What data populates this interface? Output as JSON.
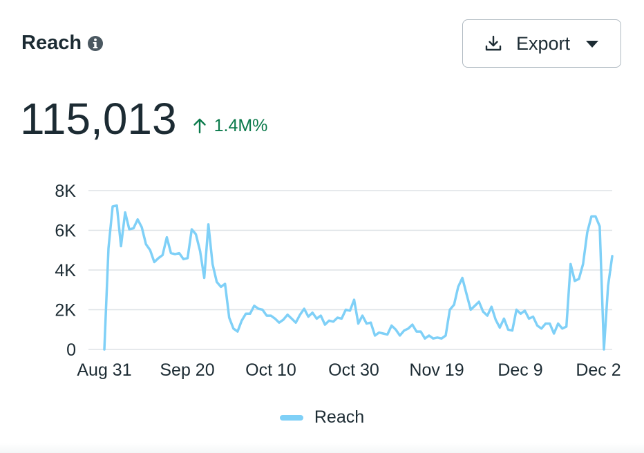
{
  "header": {
    "title": "Reach",
    "export_label": "Export"
  },
  "metric": {
    "value": "115,013",
    "change": "1.4M%"
  },
  "legend": {
    "label": "Reach"
  },
  "colors": {
    "series": "#7fd0f7",
    "grid": "#dde2e6",
    "text": "#1c2b33",
    "positive": "#0b7a4b"
  },
  "chart_data": {
    "type": "line",
    "x_tick_labels": [
      "Aug 31",
      "Sep 20",
      "Oct 10",
      "Oct 30",
      "Nov 19",
      "Dec 9",
      "Dec 2"
    ],
    "y_tick_labels": [
      "0",
      "2K",
      "4K",
      "6K",
      "8K"
    ],
    "ylim": [
      0,
      8000
    ],
    "grid": true,
    "legend_position": "bottom",
    "series": [
      {
        "name": "Reach",
        "values": [
          0,
          5100,
          7200,
          7250,
          5200,
          6900,
          6050,
          6100,
          6550,
          6150,
          5300,
          5000,
          4400,
          4600,
          4750,
          5650,
          4850,
          4800,
          4850,
          4550,
          4600,
          6050,
          5800,
          4950,
          3600,
          6300,
          4300,
          3400,
          3150,
          3300,
          1600,
          1050,
          900,
          1450,
          1800,
          1800,
          2200,
          2050,
          2000,
          1700,
          1700,
          1550,
          1350,
          1500,
          1750,
          1550,
          1350,
          1750,
          2050,
          1650,
          1850,
          1550,
          1700,
          1250,
          1450,
          1400,
          1600,
          1550,
          2000,
          1950,
          2500,
          1300,
          1700,
          1300,
          1350,
          700,
          850,
          800,
          750,
          1200,
          1000,
          700,
          950,
          1050,
          1250,
          900,
          900,
          550,
          700,
          550,
          600,
          550,
          700,
          2000,
          2250,
          3150,
          3600,
          2800,
          2000,
          2200,
          2400,
          1900,
          1700,
          2150,
          1500,
          1100,
          1550,
          1000,
          950,
          2000,
          1800,
          1950,
          1550,
          1650,
          1200,
          1050,
          1300,
          1300,
          800,
          1300,
          1050,
          1150,
          4300,
          3450,
          3550,
          4300,
          5900,
          6700,
          6700,
          6200,
          0,
          3200,
          4700
        ]
      }
    ]
  }
}
